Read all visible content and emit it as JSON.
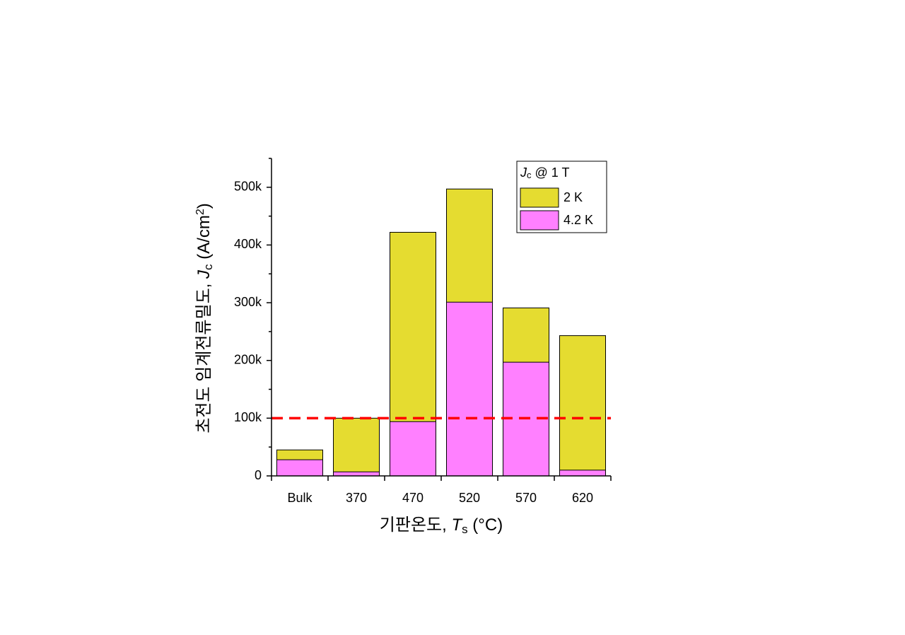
{
  "chart_data": {
    "type": "bar",
    "categories": [
      "Bulk",
      "370",
      "470",
      "520",
      "570",
      "620"
    ],
    "series": [
      {
        "name": "2 K",
        "color": "#e5dc30",
        "values": [
          45000,
          100000,
          422000,
          497000,
          291000,
          243000
        ]
      },
      {
        "name": "4.2 K",
        "color": "#ff80ff",
        "values": [
          28000,
          7000,
          94000,
          301000,
          197000,
          10000
        ]
      }
    ],
    "legend_title": [
      "J",
      "c",
      " @ 1 T"
    ],
    "x_label": [
      "기판온도, ",
      "T",
      "s",
      " (°C)"
    ],
    "y_label": [
      "초전도 임계전류밀도, ",
      "J",
      "c",
      " (A/cm",
      "2",
      ")"
    ],
    "ylim": [
      0,
      550000
    ],
    "yticks": [
      0,
      {
        "value": 100000,
        "label": "100k"
      },
      {
        "value": 200000,
        "label": "200k"
      },
      {
        "value": 300000,
        "label": "300k"
      },
      {
        "value": 400000,
        "label": "400k"
      },
      {
        "value": 500000,
        "label": "500k"
      }
    ],
    "minor_yticks": [
      50000,
      150000,
      250000,
      350000,
      450000,
      550000
    ],
    "reference_line": {
      "value": 100000,
      "color": "#ff0000"
    },
    "legend": "upper right"
  }
}
